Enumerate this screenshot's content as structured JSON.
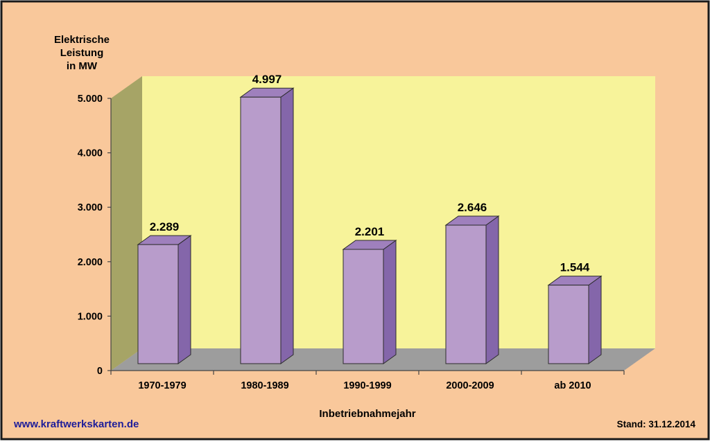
{
  "colors": {
    "background": "#f9c89b",
    "frame": "#1a1a1a",
    "back_wall": "#f7f39a",
    "side_wall": "#a6a466",
    "floor": "#9d9d9d",
    "bar_front": "#b89ccb",
    "bar_top": "#9f80bd",
    "bar_side": "#8466aa",
    "link": "#1d1d9a",
    "text": "#000000"
  },
  "footer": {
    "website": "www.kraftwerkskarten.de",
    "stand": "Stand: 31.12.2014"
  },
  "chart_data": {
    "type": "bar",
    "title": "",
    "ylabel_lines": [
      "Elektrische",
      "Leistung",
      "in MW"
    ],
    "xlabel": "Inbetriebnahmejahr",
    "categories": [
      "1970-1979",
      "1980-1989",
      "1990-1999",
      "2000-2009",
      "ab 2010"
    ],
    "values": [
      2289,
      4997,
      2201,
      2646,
      1544
    ],
    "value_labels": [
      "2.289",
      "4.997",
      "2.201",
      "2.646",
      "1.544"
    ],
    "ylim": [
      0,
      5000
    ],
    "yticks": [
      0,
      1000,
      2000,
      3000,
      4000,
      5000
    ],
    "ytick_labels": [
      "0",
      "1.000",
      "2.000",
      "3.000",
      "4.000",
      "5.000"
    ],
    "three_d": true,
    "grid": false,
    "legend": "none"
  }
}
